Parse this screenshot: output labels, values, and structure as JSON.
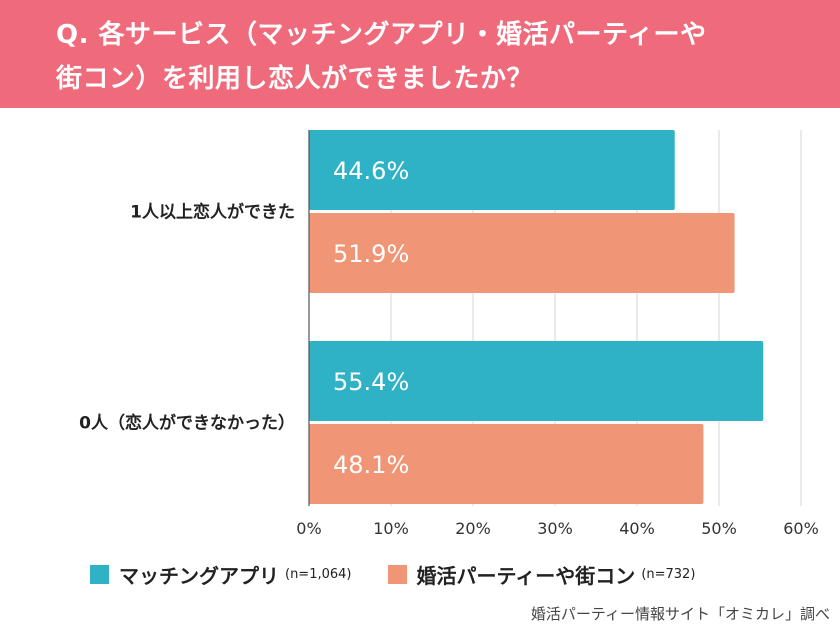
{
  "header": {
    "line1": "Q. 各サービス（マッチングアプリ・婚活パーティーや",
    "line2": "街コン）を利用し恋人ができましたか？"
  },
  "chart_data": {
    "type": "bar",
    "orientation": "horizontal",
    "categories": [
      "1人以上恋人ができた",
      "0人（恋人ができなかった）"
    ],
    "series": [
      {
        "name": "マッチングアプリ",
        "n_label": "(n=1,064)",
        "color": "#2fb1c6",
        "values": [
          44.6,
          55.4
        ],
        "labels": [
          "44.6%",
          "55.4%"
        ]
      },
      {
        "name": "婚活パーティーや街コン",
        "n_label": "(n=732)",
        "color": "#f09575",
        "values": [
          51.9,
          48.1
        ],
        "labels": [
          "51.9%",
          "48.1%"
        ]
      }
    ],
    "xlim": [
      0,
      60
    ],
    "x_ticks": [
      0,
      10,
      20,
      30,
      40,
      50,
      60
    ],
    "x_tick_labels": [
      "0%",
      "10%",
      "20%",
      "30%",
      "40%",
      "50%",
      "60%"
    ],
    "grid": true,
    "legend_position": "bottom"
  },
  "source": "婚活パーティー情報サイト「オミカレ」調べ"
}
